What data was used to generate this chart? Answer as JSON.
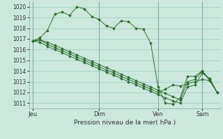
{
  "title": "Pression niveau de la mer( hPa )",
  "background_color": "#cce8dd",
  "grid_color": "#99ccbb",
  "line_color": "#2d6e2d",
  "ylim": [
    1010.5,
    1020.5
  ],
  "yticks": [
    1011,
    1012,
    1013,
    1014,
    1015,
    1016,
    1017,
    1018,
    1019,
    1020
  ],
  "xtick_labels": [
    "Jeu",
    "Dim",
    "Ven",
    "Sam"
  ],
  "xtick_positions": [
    0,
    9,
    17,
    23
  ],
  "vline_positions": [
    0,
    9,
    17,
    23
  ],
  "series1": [
    1016.8,
    1017.1,
    1017.8,
    1019.3,
    1019.5,
    1019.2,
    1020.0,
    1019.8,
    1019.1,
    1018.8,
    1018.2,
    1018.0,
    1018.7,
    1018.6,
    1018.0,
    1017.9,
    1016.6,
    1012.5,
    1011.0,
    1010.9,
    1011.5,
    1013.5,
    1013.5,
    1014.0,
    1013.1,
    1012.0
  ],
  "series2": [
    1016.8,
    1016.9,
    1016.5,
    1016.2,
    1015.9,
    1015.6,
    1015.3,
    1015.0,
    1014.7,
    1014.4,
    1014.1,
    1013.8,
    1013.5,
    1013.2,
    1012.9,
    1012.6,
    1012.3,
    1012.0,
    1012.3,
    1012.7,
    1012.6,
    1012.8,
    1013.0,
    1013.2,
    1013.1,
    1012.0
  ],
  "series3": [
    1016.8,
    1016.7,
    1016.3,
    1016.0,
    1015.7,
    1015.4,
    1015.1,
    1014.8,
    1014.5,
    1014.2,
    1013.9,
    1013.6,
    1013.3,
    1013.0,
    1012.7,
    1012.4,
    1012.1,
    1011.8,
    1011.5,
    1011.2,
    1011.0,
    1012.5,
    1012.7,
    1013.8,
    1013.3,
    1012.0
  ],
  "series4": [
    1016.8,
    1016.9,
    1016.7,
    1016.4,
    1016.1,
    1015.8,
    1015.5,
    1015.2,
    1014.9,
    1014.6,
    1014.3,
    1014.0,
    1013.7,
    1013.4,
    1013.1,
    1012.8,
    1012.5,
    1012.2,
    1011.9,
    1011.6,
    1011.3,
    1013.0,
    1013.2,
    1014.0,
    1013.2,
    1012.0
  ]
}
